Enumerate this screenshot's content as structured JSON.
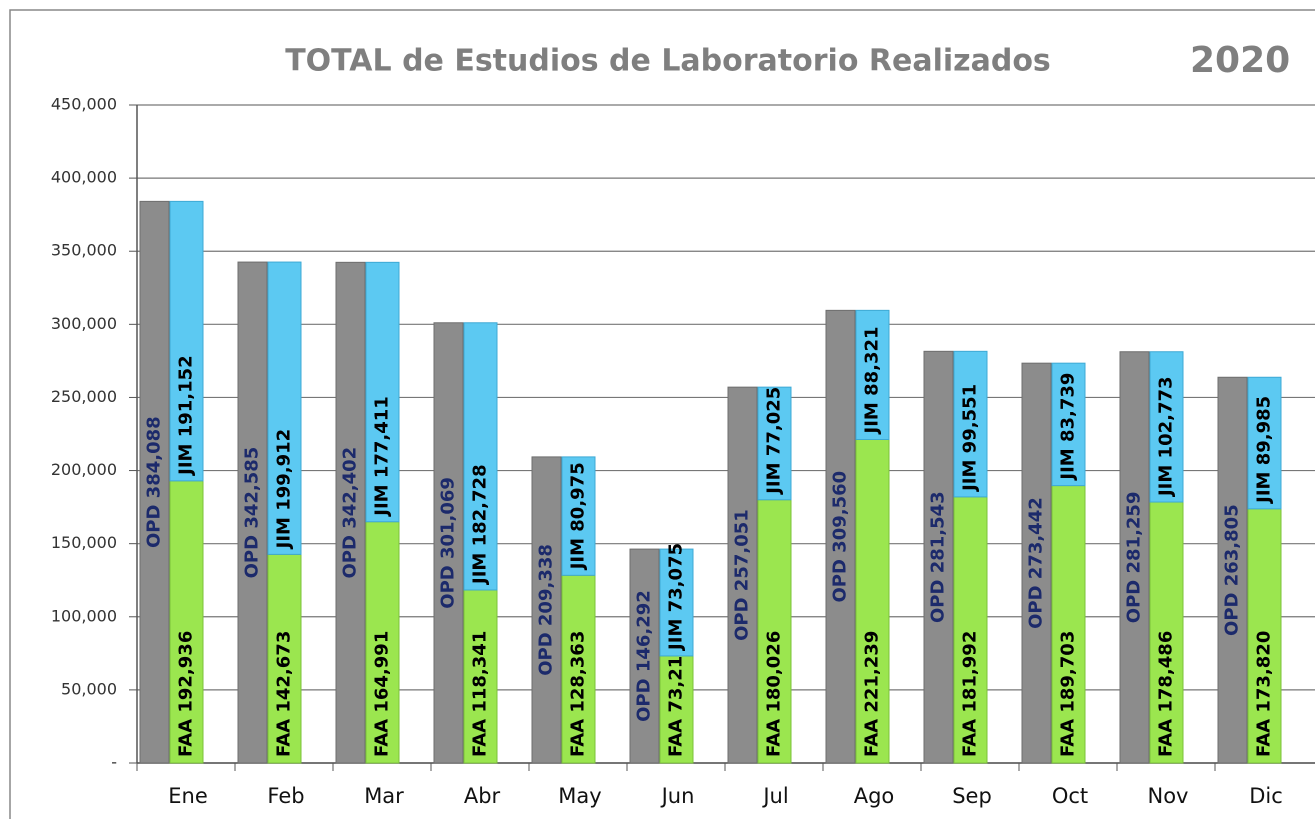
{
  "chart_data": {
    "type": "bar",
    "title": "TOTAL de Estudios de Laboratorio Realizados",
    "subtitle": "2020",
    "categories": [
      "Ene",
      "Feb",
      "Mar",
      "Abr",
      "May",
      "Jun",
      "Jul",
      "Ago",
      "Sep",
      "Oct",
      "Nov",
      "Dic"
    ],
    "series": [
      {
        "name": "OPD",
        "color": "#8c8c8c",
        "values": [
          384088,
          342585,
          342402,
          301069,
          209338,
          146292,
          257051,
          309560,
          281543,
          273442,
          281259,
          263805
        ],
        "value_labels": [
          "OPD 384,088",
          "OPD 342,585",
          "OPD 342,402",
          "OPD 301,069",
          "OPD 209,338",
          "OPD 146,292",
          "OPD 257,051",
          "OPD 309,560",
          "OPD 281,543",
          "OPD 273,442",
          "OPD 281,259",
          "OPD 263,805"
        ]
      },
      {
        "name": "FAA",
        "color": "#9be64f",
        "values": [
          192936,
          142673,
          164991,
          118341,
          128363,
          73217,
          180026,
          221239,
          181992,
          189703,
          178486,
          173820
        ],
        "value_labels": [
          "FAA 192,936",
          "FAA 142,673",
          "FAA 164,991",
          "FAA 118,341",
          "FAA 128,363",
          "FAA 73,217",
          "FAA 180,026",
          "FAA 221,239",
          "FAA 181,992",
          "FAA 189,703",
          "FAA 178,486",
          "FAA 173,820"
        ]
      },
      {
        "name": "JIM",
        "color": "#5cc9f2",
        "values": [
          191152,
          199912,
          177411,
          182728,
          80975,
          73075,
          77025,
          88321,
          99551,
          83739,
          102773,
          89985
        ],
        "value_labels": [
          "JIM 191,152",
          "JIM 199,912",
          "JIM 177,411",
          "JIM 182,728",
          "JIM 80,975",
          "JIM 73,075",
          "JIM 77,025",
          "JIM 88,321",
          "JIM 99,551",
          "JIM 83,739",
          "JIM 102,773",
          "JIM 89,985"
        ]
      }
    ],
    "ylim": [
      0,
      450000
    ],
    "yticks": [
      {
        "value": 0,
        "label": "-"
      },
      {
        "value": 50000,
        "label": "50,000"
      },
      {
        "value": 100000,
        "label": "100,000"
      },
      {
        "value": 150000,
        "label": "150,000"
      },
      {
        "value": 200000,
        "label": "200,000"
      },
      {
        "value": 250000,
        "label": "250,000"
      },
      {
        "value": 300000,
        "label": "300,000"
      },
      {
        "value": 350000,
        "label": "350,000"
      },
      {
        "value": 400000,
        "label": "400,000"
      },
      {
        "value": 450000,
        "label": "450,000"
      }
    ],
    "grid": true
  }
}
